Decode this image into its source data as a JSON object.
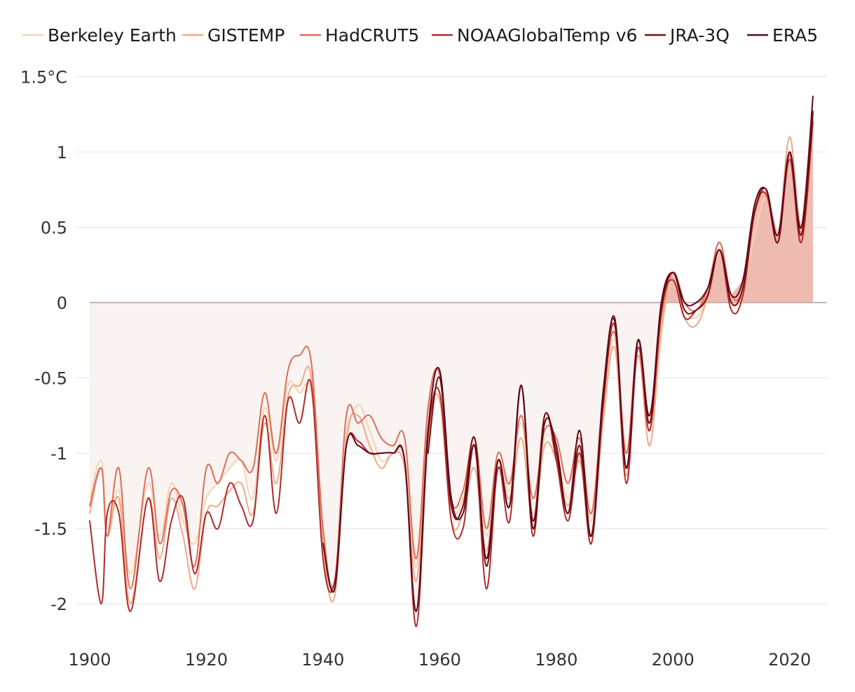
{
  "chart_data": {
    "type": "line",
    "title": "",
    "xlabel": "",
    "ylabel": "",
    "xlim": [
      1900,
      2024
    ],
    "ylim": [
      -2.2,
      1.5
    ],
    "x_ticks": [
      1900,
      1920,
      1940,
      1960,
      1980,
      2000,
      2020
    ],
    "x_tick_labels": [
      "1900",
      "1920",
      "1940",
      "1960",
      "1980",
      "2000",
      "2020"
    ],
    "y_ticks": [
      1.5,
      1,
      0.5,
      0,
      -0.5,
      -1,
      -1.5,
      -2
    ],
    "y_tick_labels": [
      "1.5°C",
      "1",
      "0.5",
      "0",
      "-0.5",
      "-1",
      "-1.5",
      "-2"
    ],
    "grid": "horizontal",
    "legend_position": "top",
    "area_fill": {
      "negative": "#f9f3f2",
      "positive": "#efbbb0",
      "reference": 0
    },
    "series": [
      {
        "name": "Berkeley Earth",
        "color": "#f6d3b6",
        "x": [
          1900,
          1902,
          1903,
          1905,
          1907,
          1910,
          1912,
          1914,
          1916,
          1918,
          1920,
          1922,
          1924,
          1926,
          1928,
          1930,
          1932,
          1934,
          1936,
          1938,
          1940,
          1942,
          1944,
          1946,
          1948,
          1950,
          1952,
          1954,
          1956,
          1958,
          1960,
          1962,
          1964,
          1966,
          1968,
          1970,
          1972,
          1974,
          1976,
          1978,
          1980,
          1982,
          1984,
          1986,
          1988,
          1990,
          1992,
          1994,
          1996,
          1998,
          2000,
          2002,
          2004,
          2006,
          2008,
          2010,
          2012,
          2014,
          2016,
          2018,
          2020,
          2022,
          2024
        ],
        "y": [
          -1.3,
          -1.05,
          -1.5,
          -1.25,
          -1.8,
          -1.2,
          -1.55,
          -1.2,
          -1.45,
          -1.6,
          -1.3,
          -1.2,
          -1.1,
          -1.05,
          -1.3,
          -0.7,
          -1.05,
          -0.55,
          -0.6,
          -0.6,
          -1.5,
          -1.9,
          -0.95,
          -0.68,
          -0.85,
          -1.05,
          -1.0,
          -1.05,
          -1.75,
          -0.75,
          -0.6,
          -1.35,
          -1.3,
          -1.0,
          -1.55,
          -1.05,
          -1.25,
          -0.8,
          -1.4,
          -0.9,
          -1.0,
          -1.3,
          -1.0,
          -1.45,
          -0.75,
          -0.25,
          -1.1,
          -0.3,
          -0.85,
          -0.15,
          0.15,
          -0.05,
          -0.1,
          0.05,
          0.35,
          0.0,
          0.1,
          0.45,
          0.7,
          0.45,
          0.95,
          0.5,
          1.22
        ]
      },
      {
        "name": "GISTEMP",
        "color": "#efa986",
        "x": [
          1900,
          1902,
          1903,
          1905,
          1907,
          1910,
          1912,
          1914,
          1916,
          1918,
          1920,
          1922,
          1924,
          1926,
          1928,
          1930,
          1932,
          1934,
          1936,
          1938,
          1940,
          1942,
          1944,
          1946,
          1948,
          1950,
          1952,
          1954,
          1956,
          1958,
          1960,
          1962,
          1964,
          1966,
          1968,
          1970,
          1972,
          1974,
          1976,
          1978,
          1980,
          1982,
          1984,
          1986,
          1988,
          1990,
          1992,
          1994,
          1996,
          1998,
          2000,
          2002,
          2004,
          2006,
          2008,
          2010,
          2012,
          2014,
          2016,
          2018,
          2020,
          2022,
          2024
        ],
        "y": [
          -1.4,
          -1.1,
          -1.55,
          -1.3,
          -2.0,
          -1.3,
          -1.7,
          -1.3,
          -1.55,
          -1.9,
          -1.4,
          -1.35,
          -1.25,
          -1.2,
          -1.4,
          -0.8,
          -1.2,
          -0.62,
          -0.55,
          -0.5,
          -1.6,
          -1.95,
          -0.9,
          -0.75,
          -0.95,
          -1.1,
          -1.0,
          -1.1,
          -1.85,
          -0.85,
          -0.65,
          -1.45,
          -1.4,
          -1.1,
          -1.65,
          -1.1,
          -1.3,
          -0.9,
          -1.45,
          -0.95,
          -1.05,
          -1.35,
          -1.05,
          -1.55,
          -0.8,
          -0.3,
          -1.15,
          -0.35,
          -0.95,
          -0.2,
          0.2,
          -0.1,
          -0.15,
          0.05,
          0.4,
          0.0,
          0.1,
          0.6,
          0.7,
          0.45,
          1.1,
          0.5,
          1.22
        ]
      },
      {
        "name": "HadCRUT5",
        "color": "#de6d57",
        "x": [
          1900,
          1902,
          1903,
          1905,
          1907,
          1910,
          1912,
          1914,
          1916,
          1918,
          1920,
          1922,
          1924,
          1926,
          1928,
          1930,
          1932,
          1934,
          1936,
          1938,
          1940,
          1942,
          1944,
          1946,
          1948,
          1950,
          1952,
          1954,
          1956,
          1958,
          1960,
          1962,
          1964,
          1966,
          1968,
          1970,
          1972,
          1974,
          1976,
          1978,
          1980,
          1982,
          1984,
          1986,
          1988,
          1990,
          1992,
          1994,
          1996,
          1998,
          2000,
          2002,
          2004,
          2006,
          2008,
          2010,
          2012,
          2014,
          2016,
          2018,
          2020,
          2022,
          2024
        ],
        "y": [
          -1.35,
          -1.1,
          -1.55,
          -1.1,
          -1.9,
          -1.1,
          -1.6,
          -1.25,
          -1.35,
          -1.75,
          -1.1,
          -1.2,
          -1.0,
          -1.05,
          -1.1,
          -0.6,
          -1.0,
          -0.45,
          -0.35,
          -0.4,
          -1.5,
          -1.85,
          -0.75,
          -0.8,
          -0.75,
          -0.9,
          -0.95,
          -0.9,
          -1.7,
          -0.7,
          -0.48,
          -1.3,
          -1.25,
          -0.9,
          -1.5,
          -1.0,
          -1.2,
          -0.75,
          -1.3,
          -0.85,
          -0.9,
          -1.2,
          -0.9,
          -1.4,
          -0.65,
          -0.2,
          -1.0,
          -0.25,
          -0.8,
          -0.1,
          0.2,
          0.0,
          -0.05,
          0.1,
          0.4,
          0.05,
          0.1,
          0.65,
          0.72,
          0.45,
          0.98,
          0.45,
          1.25
        ]
      },
      {
        "name": "NOAAGlobalTemp v6",
        "color": "#b02a2a",
        "x": [
          1900,
          1902,
          1903,
          1905,
          1907,
          1910,
          1912,
          1914,
          1916,
          1918,
          1920,
          1922,
          1924,
          1926,
          1928,
          1930,
          1932,
          1934,
          1936,
          1938,
          1940,
          1942,
          1944,
          1946,
          1948,
          1950,
          1952,
          1954,
          1956,
          1958,
          1960,
          1962,
          1964,
          1966,
          1968,
          1970,
          1972,
          1974,
          1976,
          1978,
          1980,
          1982,
          1984,
          1986,
          1988,
          1990,
          1992,
          1994,
          1996,
          1998,
          2000,
          2002,
          2004,
          2006,
          2008,
          2010,
          2012,
          2014,
          2016,
          2018,
          2020,
          2022,
          2024
        ],
        "y": [
          -1.45,
          -2.0,
          -1.4,
          -1.4,
          -2.05,
          -1.3,
          -1.85,
          -1.45,
          -1.3,
          -1.8,
          -1.4,
          -1.5,
          -1.2,
          -1.35,
          -1.45,
          -0.75,
          -1.4,
          -0.65,
          -0.8,
          -0.55,
          -1.7,
          -1.85,
          -0.95,
          -0.92,
          -1.0,
          -1.0,
          -1.0,
          -1.05,
          -2.15,
          -0.9,
          -0.6,
          -1.45,
          -1.5,
          -0.95,
          -1.9,
          -1.1,
          -1.45,
          -0.55,
          -1.55,
          -0.75,
          -1.05,
          -1.45,
          -1.0,
          -1.6,
          -0.7,
          -0.15,
          -1.2,
          -0.3,
          -0.85,
          -0.05,
          0.15,
          -0.1,
          -0.05,
          0.05,
          0.35,
          -0.05,
          0.05,
          0.6,
          0.72,
          0.4,
          0.95,
          0.4,
          1.2
        ]
      },
      {
        "name": "JRA-3Q",
        "color": "#7d0f0f",
        "x": [
          1958,
          1960,
          1962,
          1964,
          1966,
          1968,
          1970,
          1972,
          1974,
          1976,
          1978,
          1980,
          1982,
          1984,
          1986,
          1988,
          1990,
          1992,
          1994,
          1996,
          1998,
          2000,
          2002,
          2004,
          2006,
          2008,
          2010,
          2012,
          2014,
          2016,
          2018,
          2020,
          2022,
          2024
        ],
        "y": [
          -1.0,
          -0.5,
          -1.35,
          -1.35,
          -0.9,
          -1.75,
          -1.05,
          -1.35,
          -0.55,
          -1.45,
          -0.75,
          -1.0,
          -1.4,
          -0.95,
          -1.55,
          -0.65,
          -0.1,
          -1.1,
          -0.25,
          -0.8,
          -0.05,
          0.2,
          -0.05,
          -0.05,
          0.05,
          0.35,
          0.0,
          0.1,
          0.6,
          0.75,
          0.4,
          1.0,
          0.45,
          1.27
        ]
      },
      {
        "name": "ERA5",
        "color": "#5a0a1e",
        "x": [
          1940,
          1942,
          1944,
          1946,
          1948,
          1950,
          1952,
          1954,
          1956,
          1958,
          1960,
          1962,
          1964,
          1966,
          1968,
          1970,
          1972,
          1974,
          1976,
          1978,
          1980,
          1982,
          1984,
          1986,
          1988,
          1990,
          1992,
          1994,
          1996,
          1998,
          2000,
          2002,
          2004,
          2006,
          2008,
          2010,
          2012,
          2014,
          2016,
          2018,
          2020,
          2022,
          2024
        ],
        "y": [
          -1.6,
          -1.9,
          -0.95,
          -0.95,
          -1.0,
          -1.0,
          -1.0,
          -1.05,
          -2.05,
          -0.85,
          -0.45,
          -1.3,
          -1.4,
          -0.95,
          -1.7,
          -1.05,
          -1.35,
          -0.55,
          -1.5,
          -0.8,
          -0.95,
          -1.4,
          -0.85,
          -1.55,
          -0.6,
          -0.12,
          -1.1,
          -0.25,
          -0.75,
          0.0,
          0.2,
          0.0,
          0.0,
          0.1,
          0.35,
          0.05,
          0.15,
          0.65,
          0.75,
          0.45,
          1.0,
          0.5,
          1.37
        ]
      }
    ]
  }
}
